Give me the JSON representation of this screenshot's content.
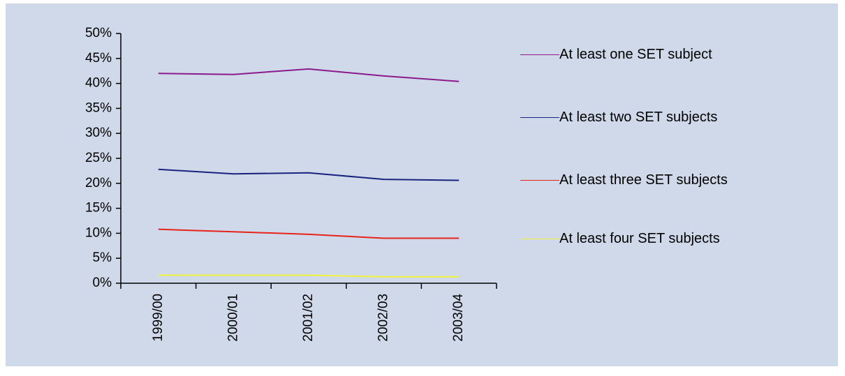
{
  "chart_data": {
    "type": "line",
    "categories": [
      "1999/00",
      "2000/01",
      "2001/02",
      "2002/03",
      "2003/04"
    ],
    "series": [
      {
        "name": "At least one SET subject",
        "color": "#8b1a8b",
        "values": [
          42.0,
          41.8,
          42.9,
          41.5,
          40.4
        ]
      },
      {
        "name": "At least two SET subjects",
        "color": "#1a237e",
        "values": [
          22.8,
          21.9,
          22.1,
          20.8,
          20.6
        ]
      },
      {
        "name": "At least three SET subjects",
        "color": "#e8231a",
        "values": [
          10.8,
          10.3,
          9.8,
          9.0,
          9.0
        ]
      },
      {
        "name": "At least four SET subjects",
        "color": "#f2f23a",
        "values": [
          1.6,
          1.6,
          1.6,
          1.3,
          1.3
        ]
      }
    ],
    "ylim": [
      0,
      50
    ],
    "yticks": [
      {
        "value": 0,
        "label": "0%"
      },
      {
        "value": 5,
        "label": "5%"
      },
      {
        "value": 10,
        "label": "10%"
      },
      {
        "value": 15,
        "label": "15%"
      },
      {
        "value": 20,
        "label": "20%"
      },
      {
        "value": 25,
        "label": "25%"
      },
      {
        "value": 30,
        "label": "30%"
      },
      {
        "value": 35,
        "label": "35%"
      },
      {
        "value": 40,
        "label": "40%"
      },
      {
        "value": 45,
        "label": "45%"
      },
      {
        "value": 50,
        "label": "50%"
      }
    ],
    "grid": false,
    "legend": "right"
  }
}
